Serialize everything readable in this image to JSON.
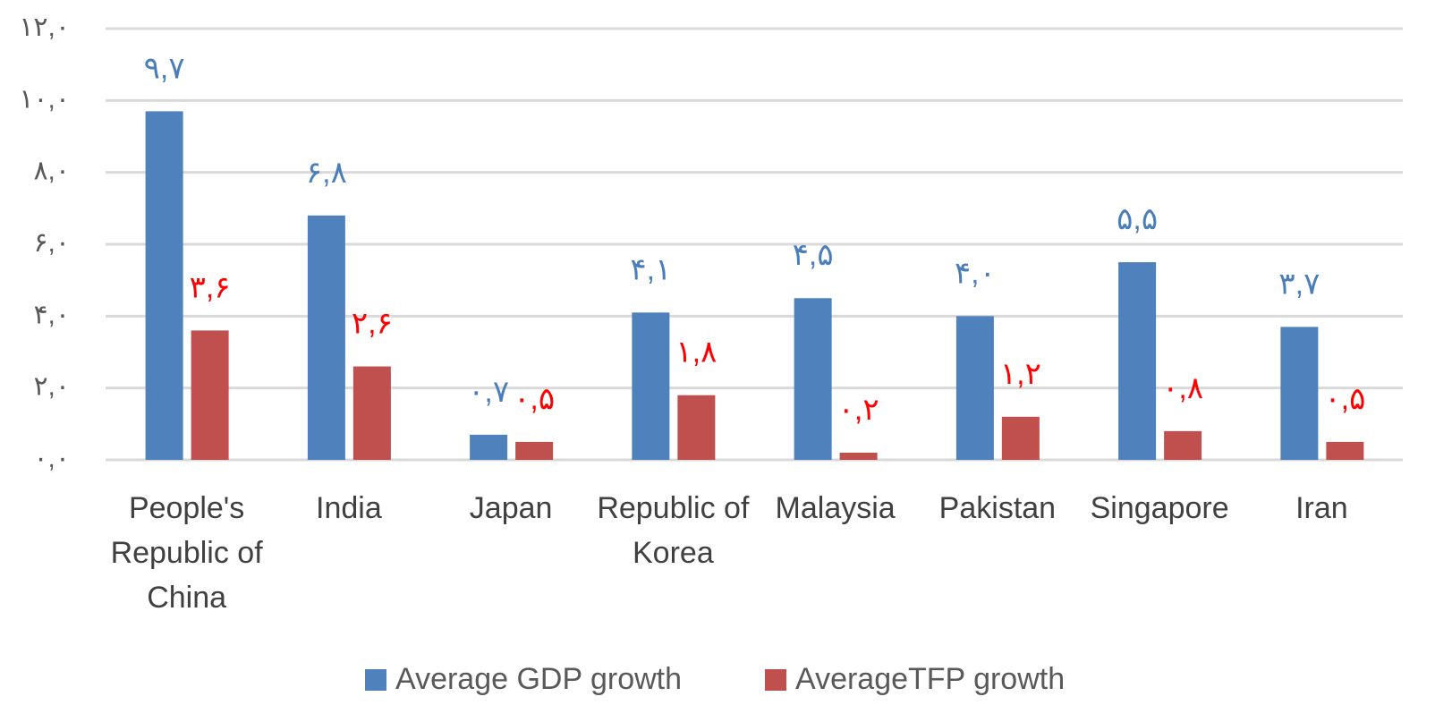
{
  "chart_data": {
    "type": "bar",
    "categories": [
      "People's Republic of China",
      "India",
      "Japan",
      "Republic of Korea",
      "Malaysia",
      "Pakistan",
      "Singapore",
      "Iran"
    ],
    "series": [
      {
        "name": "Average GDP growth",
        "color": "#4f81bd",
        "label_color": "#4a7ebb",
        "values": [
          9.7,
          6.8,
          0.7,
          4.1,
          4.5,
          4.0,
          5.5,
          3.7
        ],
        "value_labels": [
          "۹,۷",
          "۶,۸",
          "۰,۷",
          "۴,۱",
          "۴,۵",
          "۴,۰",
          "۵,۵",
          "۳,۷"
        ]
      },
      {
        "name": "AverageTFP growth",
        "color": "#c0504d",
        "label_color": "#ff0000",
        "values": [
          3.6,
          2.6,
          0.5,
          1.8,
          0.2,
          1.2,
          0.8,
          0.5
        ],
        "value_labels": [
          "۳,۶",
          "۲,۶",
          "۰,۵",
          "۱,۸",
          "۰,۲",
          "۱,۲",
          "۰,۸",
          "۰,۵"
        ]
      }
    ],
    "ylim": [
      0,
      12
    ],
    "yticks": [
      {
        "value": 0,
        "label": "۰,۰"
      },
      {
        "value": 2,
        "label": "۲,۰"
      },
      {
        "value": 4,
        "label": "۴,۰"
      },
      {
        "value": 6,
        "label": "۶,۰"
      },
      {
        "value": 8,
        "label": "۸,۰"
      },
      {
        "value": 10,
        "label": "۱۰,۰"
      },
      {
        "value": 12,
        "label": "۱۲,۰"
      }
    ],
    "grid": true,
    "legend": "bottom"
  }
}
